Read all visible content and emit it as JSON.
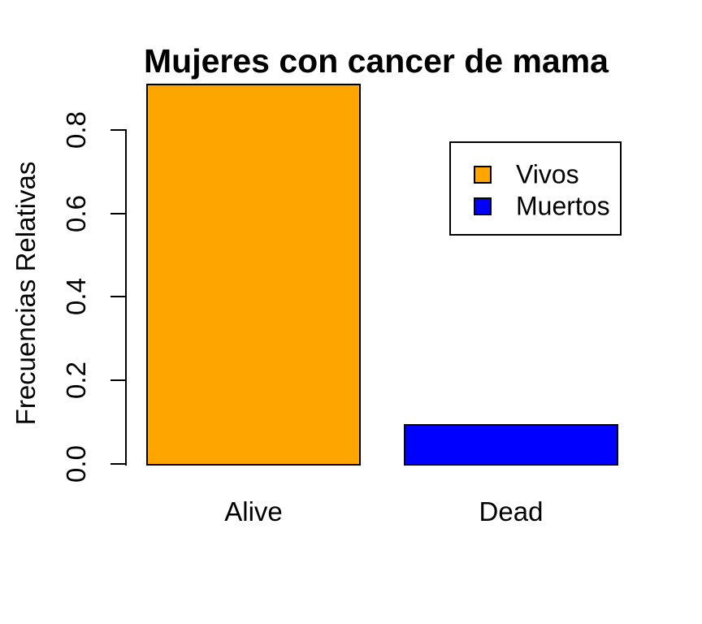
{
  "chart_data": {
    "type": "bar",
    "title": "Mujeres con cancer de mama",
    "ylabel": "Frecuencias Relativas",
    "xlabel": "",
    "categories": [
      "Alive",
      "Dead"
    ],
    "values": [
      0.91,
      0.095
    ],
    "bar_colors": [
      "#FFA500",
      "#0000FF"
    ],
    "bar_edge_color": "#000000",
    "background_color": "#FFFFFF",
    "text_color": "#000000",
    "ylim": [
      0,
      0.91
    ],
    "yticks": [
      "0.0",
      "0.2",
      "0.4",
      "0.6",
      "0.8"
    ],
    "grid": false,
    "legend": {
      "position": "upper-right",
      "border": true,
      "entries": [
        {
          "label": "Vivos",
          "color": "#FFA500"
        },
        {
          "label": "Muertos",
          "color": "#0000FF"
        }
      ]
    }
  }
}
